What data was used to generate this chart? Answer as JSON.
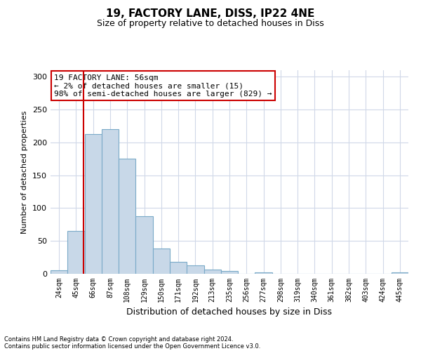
{
  "title1": "19, FACTORY LANE, DISS, IP22 4NE",
  "title2": "Size of property relative to detached houses in Diss",
  "xlabel": "Distribution of detached houses by size in Diss",
  "ylabel": "Number of detached properties",
  "bar_values": [
    5,
    65,
    213,
    220,
    175,
    88,
    38,
    18,
    13,
    6,
    4,
    0,
    2,
    0,
    0,
    0,
    0,
    0,
    0,
    0,
    2
  ],
  "bar_labels": [
    "24sqm",
    "45sqm",
    "66sqm",
    "87sqm",
    "108sqm",
    "129sqm",
    "150sqm",
    "171sqm",
    "192sqm",
    "213sqm",
    "235sqm",
    "256sqm",
    "277sqm",
    "298sqm",
    "319sqm",
    "340sqm",
    "361sqm",
    "382sqm",
    "403sqm",
    "424sqm",
    "445sqm"
  ],
  "bar_color": "#c8d8e8",
  "bar_edge_color": "#7aaac8",
  "bar_edge_width": 0.8,
  "grid_color": "#d0d8e8",
  "background_color": "#ffffff",
  "ylim": [
    0,
    310
  ],
  "yticks": [
    0,
    50,
    100,
    150,
    200,
    250,
    300
  ],
  "red_line_x": 1.42,
  "annotation_text": "19 FACTORY LANE: 56sqm\n← 2% of detached houses are smaller (15)\n98% of semi-detached houses are larger (829) →",
  "annotation_box_color": "#ffffff",
  "annotation_box_edge_color": "#cc0000",
  "footnote1": "Contains HM Land Registry data © Crown copyright and database right 2024.",
  "footnote2": "Contains public sector information licensed under the Open Government Licence v3.0."
}
